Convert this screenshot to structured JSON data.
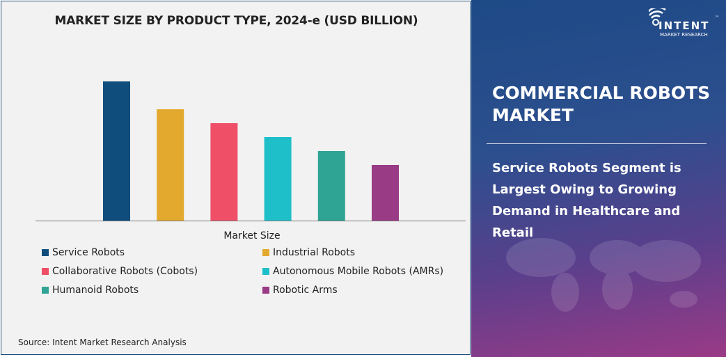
{
  "chart_data": {
    "type": "bar",
    "title": "MARKET SIZE BY PRODUCT TYPE, 2024-e (USD BILLION)",
    "xlabel": "Market Size",
    "ylabel": "",
    "categories": [
      "Service Robots",
      "Industrial Robots",
      "Collaborative Robots (Cobots)",
      "Autonomous Mobile Robots (AMRs)",
      "Humanoid Robots",
      "Robotic Arms"
    ],
    "values": [
      10,
      8,
      7,
      6,
      5,
      4
    ],
    "colors": [
      "#0f4d7d",
      "#e3a92e",
      "#ef4f67",
      "#1fbfca",
      "#2fa394",
      "#9a3b86"
    ],
    "ylim": [
      0,
      10
    ],
    "grid": false,
    "legend_position": "bottom",
    "axis_ticks_shown": false
  },
  "source": "Source: Intent Market Research Analysis",
  "side_panel": {
    "title": "COMMERCIAL ROBOTS MARKET",
    "headline": "Service Robots Segment is Largest Owing to Growing Demand in Healthcare and Retail",
    "logo": {
      "name": "INTENT",
      "sub": "MARKET RESEARCH",
      "tm": "™"
    }
  }
}
